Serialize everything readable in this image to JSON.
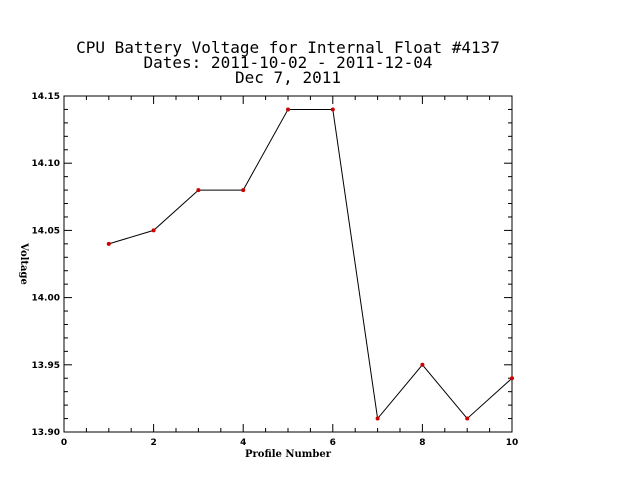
{
  "chart_data": {
    "type": "line",
    "title_lines": [
      "CPU Battery Voltage for Internal Float #4137",
      "Dates:  2011-10-02 -  2011-12-04",
      "Dec  7, 2011"
    ],
    "xlabel": "Profile Number",
    "ylabel": "Voltage",
    "xlim": [
      0,
      10
    ],
    "ylim": [
      13.9,
      14.15
    ],
    "x_ticks": [
      0,
      2,
      4,
      6,
      8,
      10
    ],
    "x_tick_labels": [
      "0",
      "2",
      "4",
      "6",
      "8",
      "10"
    ],
    "y_ticks": [
      13.9,
      13.95,
      14.0,
      14.05,
      14.1,
      14.15
    ],
    "y_tick_labels": [
      "13.90",
      "13.95",
      "14.00",
      "14.05",
      "14.10",
      "14.15"
    ],
    "x": [
      1,
      2,
      3,
      4,
      5,
      6,
      7,
      8,
      9,
      10
    ],
    "values": [
      14.04,
      14.05,
      14.08,
      14.08,
      14.14,
      14.14,
      13.91,
      13.95,
      13.91,
      13.94
    ],
    "grid": false,
    "line_color": "#000000",
    "marker_color": "#cc0000"
  }
}
